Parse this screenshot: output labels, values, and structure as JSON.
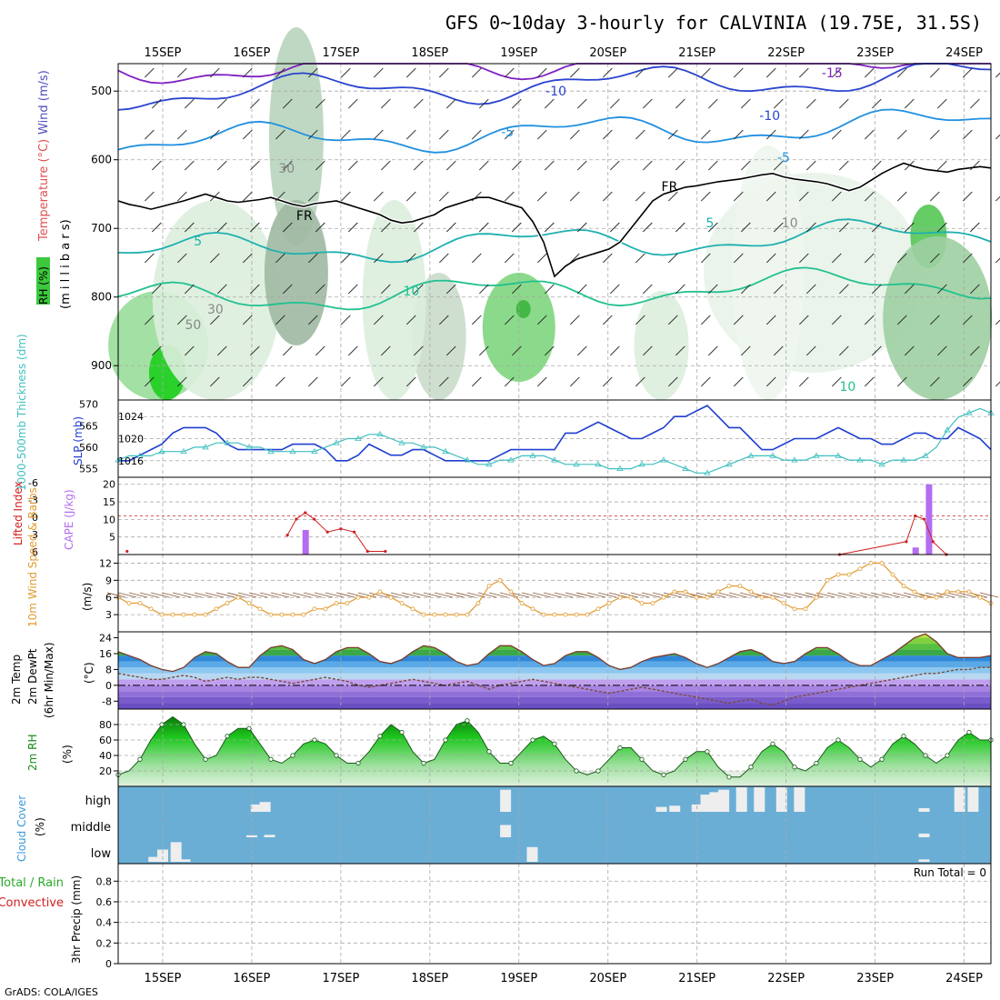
{
  "title": "GFS 0~10day 3-hourly for CALVINIA (19.75E, 31.5S)",
  "credit": "GrADS: COLA/IGES",
  "run_total_label": "Run Total = 0",
  "colors": {
    "grid": "#a8a8a8",
    "slp": "#1f3fcf",
    "thickness": "#3fbfbf",
    "lifted_index": "#d02020",
    "cape": "#b46cf0",
    "wind_speed": "#e09a30",
    "barb": "#8a5a3a",
    "rh_green": "#3cc83c",
    "cloud_bg": "#6aaed6"
  },
  "chart_data": [
    {
      "type": "contour",
      "panel": "upper-air",
      "ylabel_left": [
        "Temperature (°C)",
        "Wind (m/s)",
        "RH (%)"
      ],
      "ylabel_mid": "(m i l l i b a r s)",
      "x_dates": [
        "15SEP",
        "16SEP",
        "17SEP",
        "18SEP",
        "19SEP",
        "20SEP",
        "21SEP",
        "22SEP",
        "23SEP",
        "24SEP"
      ],
      "y_ticks": [
        500,
        600,
        700,
        800,
        900
      ],
      "ylim": [
        950,
        460
      ],
      "contour_labels": [
        "-15",
        "-10",
        "-10",
        "-5",
        "-5",
        "FR",
        "FR",
        "5",
        "5",
        "10",
        "10",
        "30",
        "30",
        "50",
        "10"
      ],
      "freezing_level_mb": [
        660,
        665,
        668,
        672,
        668,
        664,
        660,
        655,
        650,
        655,
        660,
        662,
        660,
        658,
        655,
        660,
        665,
        668,
        664,
        662,
        660,
        665,
        670,
        675,
        680,
        688,
        692,
        690,
        685,
        680,
        670,
        665,
        660,
        655,
        655,
        660,
        665,
        670,
        690,
        720,
        770,
        755,
        745,
        740,
        735,
        730,
        720,
        700,
        680,
        660,
        650,
        645,
        640,
        638,
        635,
        632,
        630,
        628,
        625,
        622,
        620,
        625,
        628,
        630,
        632,
        635,
        640,
        645,
        640,
        630,
        620,
        612,
        605,
        610,
        614,
        616,
        618,
        614,
        612,
        610,
        612
      ]
    },
    {
      "type": "line",
      "panel": "slp-thickness",
      "ylabel_left": "1000-500mb Thickness (dm)",
      "ylabel_right": "SLP (mb)",
      "y_ticks_left": [
        555,
        560,
        565,
        570
      ],
      "y_ticks_right": [
        1016,
        1020,
        1024
      ],
      "series": [
        {
          "name": "SLP",
          "values": [
            1016,
            1016,
            1017,
            1018,
            1019,
            1021,
            1022,
            1022,
            1022,
            1021,
            1019,
            1018,
            1018,
            1018,
            1018,
            1018,
            1019,
            1019,
            1019,
            1018,
            1016,
            1016,
            1017,
            1019,
            1018,
            1017,
            1017,
            1018,
            1018,
            1017,
            1016,
            1016,
            1016,
            1016,
            1016,
            1017,
            1018,
            1018,
            1018,
            1018,
            1018,
            1021,
            1021,
            1022,
            1023,
            1022,
            1021,
            1020,
            1020,
            1021,
            1022,
            1024,
            1024,
            1025,
            1026,
            1024,
            1022,
            1022,
            1020,
            1018,
            1018,
            1019,
            1020,
            1020,
            1020,
            1021,
            1022,
            1021,
            1020,
            1020,
            1019,
            1019,
            1020,
            1021,
            1021,
            1020,
            1020,
            1022,
            1021,
            1020,
            1018
          ]
        },
        {
          "name": "Thickness",
          "values": [
            557,
            558,
            558,
            558,
            559,
            559,
            559,
            560,
            560,
            561,
            561,
            561,
            560,
            560,
            559,
            559,
            559,
            559,
            559,
            560,
            561,
            562,
            562,
            563,
            563,
            562,
            561,
            561,
            560,
            560,
            559,
            558,
            557,
            556,
            556,
            557,
            557,
            558,
            558,
            558,
            557,
            556,
            556,
            556,
            556,
            555,
            555,
            555,
            556,
            556,
            557,
            556,
            555,
            554,
            554,
            555,
            556,
            557,
            558,
            558,
            558,
            557,
            557,
            557,
            558,
            558,
            558,
            557,
            557,
            557,
            556,
            557,
            557,
            557,
            558,
            560,
            564,
            567,
            568,
            569,
            568
          ]
        }
      ]
    },
    {
      "type": "bar",
      "panel": "cape-lifted-index",
      "ylabel_left": "Lifted Index",
      "ylabel_right": "CAPE (J/kg)",
      "y_ticks_left": [
        "-6",
        "-3",
        "0",
        "3",
        "6"
      ],
      "y_ticks_right": [
        "5",
        "10",
        "15",
        "20"
      ],
      "cape_bars": [
        {
          "x": 16.6,
          "value": 7
        },
        {
          "x": 23.45,
          "value": 2
        },
        {
          "x": 23.6,
          "value": 20
        }
      ],
      "lifted_index": [
        {
          "x": 14.6,
          "value": 5.5
        },
        {
          "x": 16.4,
          "value": 3
        },
        {
          "x": 16.5,
          "value": 0.5
        },
        {
          "x": 16.6,
          "value": -0.5
        },
        {
          "x": 16.7,
          "value": 0.5
        },
        {
          "x": 16.85,
          "value": 2.5
        },
        {
          "x": 17.0,
          "value": 2
        },
        {
          "x": 17.15,
          "value": 2.5
        },
        {
          "x": 17.3,
          "value": 5.5
        },
        {
          "x": 17.5,
          "value": 5.5
        },
        {
          "x": 22.6,
          "value": 6
        },
        {
          "x": 23.35,
          "value": 4
        },
        {
          "x": 23.45,
          "value": 0
        },
        {
          "x": 23.55,
          "value": 0.5
        },
        {
          "x": 23.65,
          "value": 4
        },
        {
          "x": 23.8,
          "value": 6
        }
      ]
    },
    {
      "type": "line",
      "panel": "10m-wind",
      "ylabel_left": "10m Wind Speed & Barbs",
      "ylabel_right": "(m/s)",
      "y_ticks": [
        3,
        6,
        9,
        12
      ],
      "series": [
        {
          "name": "Speed",
          "values": [
            6,
            5,
            5,
            4,
            3,
            3,
            3,
            3,
            3,
            4,
            5,
            6,
            5,
            4,
            3,
            3,
            3,
            3,
            4,
            4,
            5,
            5,
            6,
            6,
            7,
            6,
            5,
            4,
            3,
            3,
            3,
            3,
            3,
            5,
            8,
            9,
            7,
            5,
            4,
            3,
            3,
            3,
            3,
            3,
            4,
            5,
            6,
            6,
            5,
            5,
            6,
            7,
            7,
            6,
            6,
            7,
            8,
            8,
            7,
            6,
            6,
            5,
            4,
            4,
            6,
            9,
            10,
            10,
            11,
            12,
            12,
            10,
            8,
            7,
            6,
            6,
            7,
            7,
            7,
            6,
            5
          ]
        }
      ]
    },
    {
      "type": "area",
      "panel": "2m-temp",
      "ylabel_left": "2m Temp 2m DewPt (6hr Min/Max)",
      "ylabel_right": "(°C)",
      "y_ticks": [
        -8,
        0,
        8,
        16,
        24
      ],
      "series": [
        {
          "name": "2m Temp",
          "values": [
            17,
            15,
            13,
            10,
            8,
            7,
            9,
            14,
            17,
            16,
            12,
            9,
            9,
            15,
            19,
            20,
            18,
            13,
            11,
            13,
            17,
            19,
            19,
            16,
            12,
            11,
            13,
            17,
            20,
            19,
            16,
            12,
            10,
            11,
            16,
            20,
            20,
            17,
            13,
            10,
            11,
            15,
            17,
            17,
            14,
            10,
            8,
            9,
            12,
            14,
            15,
            16,
            14,
            11,
            9,
            11,
            14,
            17,
            18,
            16,
            12,
            11,
            12,
            16,
            19,
            19,
            16,
            12,
            10,
            10,
            13,
            16,
            20,
            24,
            26,
            22,
            16,
            14,
            14,
            14,
            15
          ]
        },
        {
          "name": "2m DewPt",
          "values": [
            6,
            5,
            4,
            3,
            3,
            4,
            5,
            4,
            2,
            3,
            4,
            3,
            4,
            4,
            3,
            2,
            1,
            2,
            3,
            4,
            3,
            2,
            0,
            -1,
            0,
            1,
            2,
            3,
            2,
            1,
            0,
            1,
            2,
            0,
            -2,
            0,
            1,
            2,
            3,
            2,
            1,
            0,
            -1,
            -2,
            -3,
            -4,
            -3,
            -2,
            -1,
            -2,
            -3,
            -4,
            -5,
            -6,
            -7,
            -8,
            -9,
            -8,
            -7,
            -9,
            -10,
            -8,
            -6,
            -5,
            -4,
            -3,
            -2,
            -1,
            0,
            1,
            2,
            3,
            4,
            5,
            6,
            6,
            7,
            8,
            8,
            9,
            9
          ]
        }
      ]
    },
    {
      "type": "area",
      "panel": "2m-rh",
      "ylabel_left": "2m RH",
      "ylabel_right": "(%)",
      "y_ticks": [
        20,
        40,
        60,
        80
      ],
      "series": [
        {
          "name": "2m RH",
          "values": [
            15,
            20,
            35,
            60,
            80,
            90,
            80,
            55,
            35,
            40,
            65,
            75,
            75,
            55,
            35,
            30,
            40,
            55,
            60,
            55,
            40,
            30,
            30,
            45,
            65,
            80,
            70,
            45,
            30,
            35,
            60,
            80,
            85,
            70,
            45,
            30,
            30,
            45,
            60,
            65,
            55,
            35,
            20,
            15,
            20,
            35,
            50,
            50,
            35,
            20,
            15,
            20,
            35,
            45,
            45,
            25,
            12,
            12,
            25,
            45,
            55,
            45,
            25,
            20,
            30,
            50,
            60,
            50,
            35,
            25,
            35,
            55,
            65,
            55,
            40,
            30,
            40,
            60,
            70,
            60,
            60
          ]
        }
      ]
    },
    {
      "type": "bar",
      "panel": "cloud-cover",
      "ylabel_left": "Cloud Cover",
      "ylabel_right": "(%)",
      "levels": [
        "high",
        "middle",
        "low"
      ],
      "bars": [
        {
          "level": "low",
          "x": 14.9,
          "value": 20
        },
        {
          "level": "low",
          "x": 15.0,
          "value": 50
        },
        {
          "level": "low",
          "x": 15.15,
          "value": 80
        },
        {
          "level": "low",
          "x": 15.25,
          "value": 10
        },
        {
          "level": "middle",
          "x": 16.0,
          "value": 8
        },
        {
          "level": "middle",
          "x": 16.2,
          "value": 10
        },
        {
          "level": "high",
          "x": 16.05,
          "value": 30
        },
        {
          "level": "high",
          "x": 16.15,
          "value": 40
        },
        {
          "level": "high",
          "x": 18.85,
          "value": 90
        },
        {
          "level": "middle",
          "x": 18.85,
          "value": 50
        },
        {
          "level": "low",
          "x": 19.15,
          "value": 60
        },
        {
          "level": "high",
          "x": 20.6,
          "value": 20
        },
        {
          "level": "high",
          "x": 20.75,
          "value": 25
        },
        {
          "level": "high",
          "x": 21.0,
          "value": 30
        },
        {
          "level": "high",
          "x": 21.1,
          "value": 70
        },
        {
          "level": "high",
          "x": 21.2,
          "value": 80
        },
        {
          "level": "high",
          "x": 21.3,
          "value": 90
        },
        {
          "level": "high",
          "x": 21.5,
          "value": 100
        },
        {
          "level": "high",
          "x": 21.7,
          "value": 100
        },
        {
          "level": "high",
          "x": 21.95,
          "value": 100
        },
        {
          "level": "high",
          "x": 22.15,
          "value": 100
        },
        {
          "level": "high",
          "x": 23.55,
          "value": 15
        },
        {
          "level": "middle",
          "x": 23.55,
          "value": 15
        },
        {
          "level": "low",
          "x": 23.55,
          "value": 10
        },
        {
          "level": "high",
          "x": 23.95,
          "value": 100
        },
        {
          "level": "high",
          "x": 24.1,
          "value": 100
        }
      ]
    },
    {
      "type": "bar",
      "panel": "precip",
      "ylabel_left": [
        "Total / Rain",
        "Convective"
      ],
      "ylabel_right": "3hr Precip (mm)",
      "y_ticks": [
        "0",
        "0.2",
        "0.4",
        "0.6",
        "0.8"
      ],
      "values": []
    }
  ]
}
